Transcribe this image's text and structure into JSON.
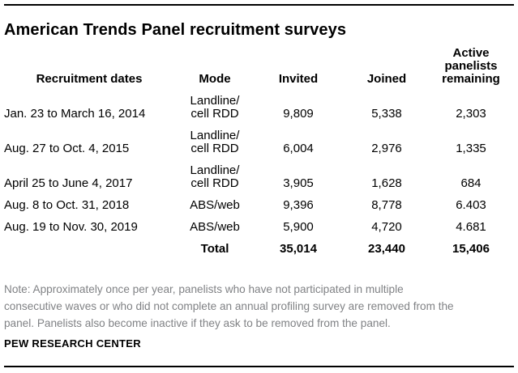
{
  "title": "American Trends Panel recruitment surveys",
  "colors": {
    "text": "#000000",
    "note_gray": "#808285",
    "rule": "#000000"
  },
  "table": {
    "columns": [
      "Recruitment dates",
      "Mode",
      "Invited",
      "Joined",
      "Active\npanelists\nremaining"
    ],
    "rows": [
      {
        "dates": "Jan. 23 to March 16, 2014",
        "mode": "Landline/\ncell RDD",
        "invited": "9,809",
        "joined": "5,338",
        "active": "2,303"
      },
      {
        "dates": "Aug. 27 to Oct. 4, 2015",
        "mode": "Landline/\ncell RDD",
        "invited": "6,004",
        "joined": "2,976",
        "active": "1,335"
      },
      {
        "dates": "April 25 to June 4, 2017",
        "mode": "Landline/\ncell RDD",
        "invited": "3,905",
        "joined": "1,628",
        "active": "684"
      },
      {
        "dates": "Aug. 8 to Oct. 31, 2018",
        "mode": "ABS/web",
        "invited": "9,396",
        "joined": "8,778",
        "active": "6.403"
      },
      {
        "dates": "Aug. 19 to Nov. 30, 2019",
        "mode": "ABS/web",
        "invited": "5,900",
        "joined": "4,720",
        "active": "4.681"
      }
    ],
    "total": {
      "label": "Total",
      "invited": "35,014",
      "joined": "23,440",
      "active": "15,406"
    }
  },
  "note": "Note: Approximately once per year, panelists who have not participated in multiple\nconsecutive waves or who did not complete an annual profiling survey are removed from the\npanel. Panelists also become inactive if they ask to be removed from the panel.",
  "source": "PEW RESEARCH CENTER",
  "chart_data": {
    "type": "table",
    "title": "American Trends Panel recruitment surveys",
    "columns": [
      "Recruitment dates",
      "Mode",
      "Invited",
      "Joined",
      "Active panelists remaining"
    ],
    "rows": [
      [
        "Jan. 23 to March 16, 2014",
        "Landline/cell RDD",
        "9,809",
        "5,338",
        "2,303"
      ],
      [
        "Aug. 27 to Oct. 4, 2015",
        "Landline/cell RDD",
        "6,004",
        "2,976",
        "1,335"
      ],
      [
        "April 25 to June 4, 2017",
        "Landline/cell RDD",
        "3,905",
        "1,628",
        "684"
      ],
      [
        "Aug. 8 to Oct. 31, 2018",
        "ABS/web",
        "9,396",
        "8,778",
        "6.403"
      ],
      [
        "Aug. 19 to Nov. 30, 2019",
        "ABS/web",
        "5,900",
        "4,720",
        "4.681"
      ]
    ],
    "total_row": [
      "",
      "Total",
      "35,014",
      "23,440",
      "15,406"
    ],
    "note": "Note: Approximately once per year, panelists who have not participated in multiple consecutive waves or who did not complete an annual profiling survey are removed from the panel. Panelists also become inactive if they ask to be removed from the panel.",
    "source": "PEW RESEARCH CENTER"
  }
}
